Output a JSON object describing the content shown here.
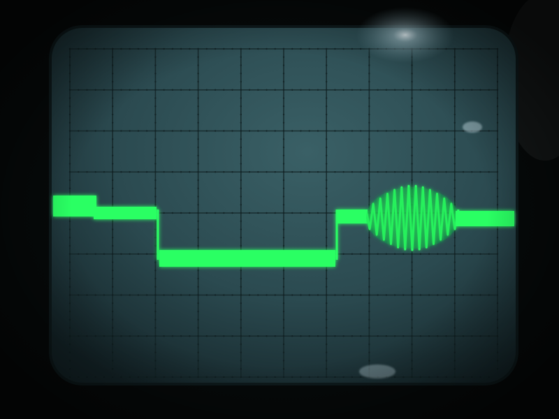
{
  "screen": {
    "glass_color": "#2b4a50",
    "glass_edge_color": "#0e1a1c",
    "graticule_color": "#142628",
    "glare_color": "#cfe6ee"
  },
  "graticule": {
    "major_divisions_x": 10,
    "major_divisions_y": 8,
    "minor_ticks_per_division": 5
  },
  "trace": {
    "color": "#2bff63",
    "glow_color": "#12c447",
    "description_levels": [
      "high",
      "mid",
      "low",
      "mid",
      "burst",
      "mid"
    ]
  }
}
